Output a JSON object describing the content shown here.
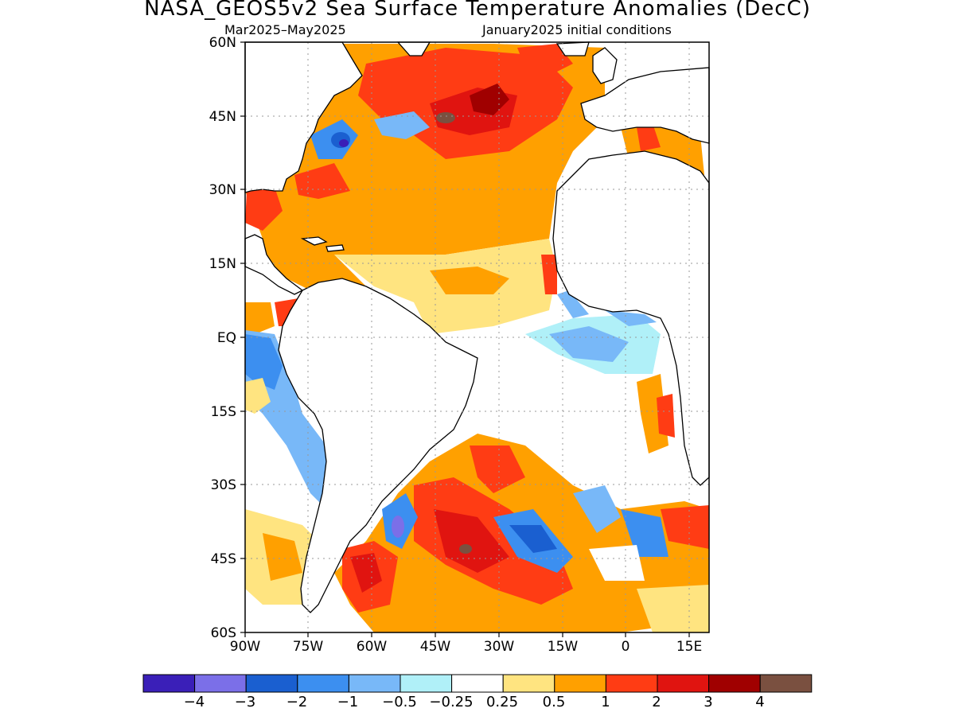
{
  "title": "NASA_GEOS5v2 Sea Surface Temperature Anomalies (DecC)",
  "subtitle_left": "Mar2025–May2025",
  "subtitle_right": "January2025 initial conditions",
  "lat_labels": [
    "60N",
    "45N",
    "30N",
    "15N",
    "EQ",
    "15S",
    "30S",
    "45S",
    "60S"
  ],
  "lon_labels": [
    "90W",
    "75W",
    "60W",
    "45W",
    "30W",
    "15W",
    "0",
    "15E"
  ],
  "colorbar": {
    "colors": [
      "#3a1fb8",
      "#7b6fe8",
      "#1a5fd0",
      "#3c8ff0",
      "#78b8f8",
      "#b0f0f8",
      "#ffffff",
      "#ffe480",
      "#ffa000",
      "#ff3c14",
      "#e01410",
      "#a00000",
      "#7a5040"
    ],
    "labels": [
      "−4",
      "−3",
      "−2",
      "−1",
      "−0.5",
      "−0.25",
      "0.25",
      "0.5",
      "1",
      "2",
      "3",
      "4"
    ]
  },
  "chart_data": {
    "type": "heatmap",
    "title": "NASA_GEOS5v2 Sea Surface Temperature Anomalies (DecC)",
    "period": "Mar2025–May2025",
    "initial_conditions": "January2025 initial conditions",
    "xlim": [
      -90,
      20
    ],
    "ylim": [
      -60,
      60
    ],
    "levels": [
      -4,
      -3,
      -2,
      -1,
      -0.5,
      -0.25,
      0.25,
      0.5,
      1,
      2,
      3,
      4
    ],
    "units": "DecC"
  }
}
